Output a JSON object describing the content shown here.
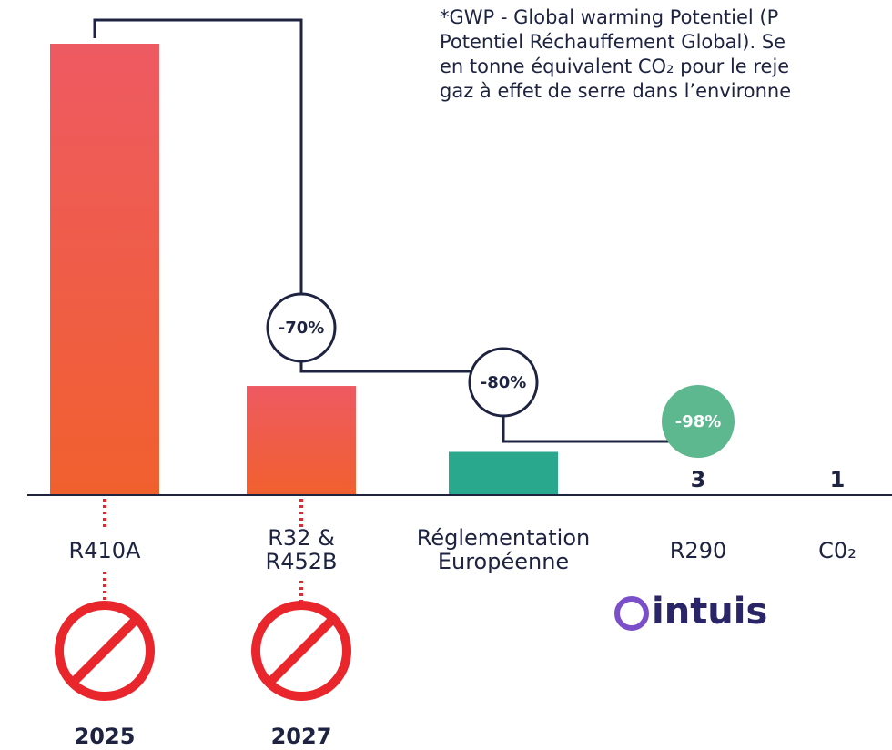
{
  "chart_data": {
    "type": "bar",
    "categories": [
      "R410A",
      "R32 & R452B",
      "Réglementation Européenne",
      "R290",
      "C0₂"
    ],
    "values": [
      2088,
      505,
      200,
      3,
      1
    ],
    "value_labels": [
      null,
      null,
      null,
      "3",
      "1"
    ],
    "colors": [
      "#ef5b3c",
      "#ef5b3c",
      "#2aa88e",
      "#2aa88e",
      "#2aa88e"
    ],
    "ylim": [
      0,
      2088
    ],
    "annotations": [
      "-70%",
      "-80%",
      "-98%"
    ],
    "ban_years": [
      "2025",
      "2027"
    ],
    "note": [
      "*GWP - Global warming Potentiel (P",
      "Potentiel Réchauffement Global). Se",
      "en tonne équivalent CO₂ pour le reje",
      "gaz à effet de serre dans l’environne"
    ],
    "logo": "intuis"
  }
}
